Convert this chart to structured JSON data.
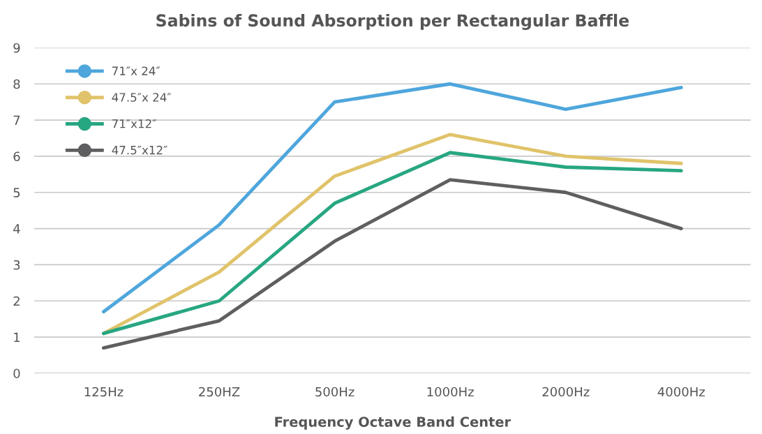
{
  "chart_data": {
    "type": "line",
    "title": "Sabins of Sound Absorption per Rectangular Baffle",
    "xlabel": "Frequency Octave Band Center",
    "categories": [
      "125Hz",
      "250HZ",
      "500Hz",
      "1000Hz",
      "2000Hz",
      "4000Hz"
    ],
    "series": [
      {
        "name": "71″x 24″",
        "color": "#4ea6dc",
        "values": [
          1.7,
          4.1,
          7.5,
          8.0,
          7.3,
          7.9
        ]
      },
      {
        "name": "47.5″x 24″",
        "color": "#e0c36a",
        "values": [
          1.1,
          2.8,
          5.45,
          6.6,
          6.0,
          5.8
        ]
      },
      {
        "name": "71″x12″",
        "color": "#27a682",
        "values": [
          1.1,
          2.0,
          4.7,
          6.1,
          5.7,
          5.6
        ]
      },
      {
        "name": "47.5″x12″",
        "color": "#5f5f62",
        "values": [
          0.7,
          1.45,
          3.65,
          5.35,
          5.0,
          4.0
        ]
      }
    ],
    "ylim": [
      0,
      9
    ],
    "yticks": [
      0,
      1,
      2,
      3,
      4,
      5,
      6,
      7,
      8,
      9
    ],
    "grid": "y",
    "legend": "top left",
    "line_style": "solid"
  }
}
